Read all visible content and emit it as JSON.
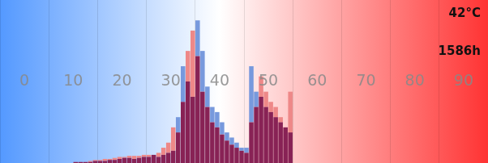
{
  "chart_data": {
    "type": "histogram",
    "bins": [
      0,
      1,
      2,
      3,
      4,
      5,
      6,
      7,
      8,
      9,
      10,
      11,
      12,
      13,
      14,
      15,
      16,
      17,
      18,
      19,
      20,
      21,
      22,
      23,
      24,
      25,
      26,
      27,
      28,
      29,
      30,
      31,
      32,
      33,
      34,
      35,
      36,
      37,
      38,
      39,
      40,
      41,
      42,
      43,
      44,
      45,
      46,
      47,
      48,
      49,
      50,
      51,
      52,
      53,
      54,
      55,
      56,
      57,
      58,
      59,
      60,
      61,
      62,
      63,
      64,
      65,
      66,
      67,
      68,
      69,
      70,
      71,
      72,
      73,
      74,
      75,
      76,
      77,
      78,
      79,
      80,
      81,
      82,
      83,
      84,
      85,
      86,
      87,
      88,
      89,
      90,
      91,
      92,
      93,
      94,
      95,
      96,
      97,
      98,
      99,
      100
    ],
    "series": [
      {
        "color": "#882255",
        "values": [
          0,
          0,
          0,
          0,
          0,
          0,
          0,
          0,
          0,
          0,
          0,
          0,
          0,
          0,
          0,
          0.1,
          0.1,
          0.1,
          0.1,
          0.2,
          0.2,
          0.2,
          0.3,
          0.3,
          0.4,
          0.5,
          0.5,
          0.4,
          0.5,
          0.6,
          0.6,
          0.8,
          0.6,
          0.8,
          1.0,
          1.2,
          3.0,
          6.0,
          8.0,
          6.5,
          10.5,
          7.0,
          5.5,
          4.0,
          3.5,
          2.8,
          2.2,
          1.8,
          1.5,
          1.2,
          1.0,
          4.0,
          5.5,
          6.5,
          5.5,
          5.0,
          4.5,
          4.0,
          3.5,
          3.0,
          0,
          0,
          0,
          0,
          0,
          0,
          0,
          0,
          0,
          0,
          0,
          0,
          0,
          0,
          0,
          0,
          0,
          0,
          0,
          0,
          0,
          0,
          0,
          0,
          0,
          0,
          0,
          0,
          0,
          0,
          0,
          0,
          0,
          0,
          0,
          0,
          0,
          0,
          0,
          0
        ]
      },
      {
        "color": "#7799dd",
        "values": [
          0,
          0,
          0,
          0,
          0,
          0,
          0,
          0,
          0,
          0,
          0,
          0,
          0,
          0,
          0,
          0,
          0,
          0,
          0,
          0,
          0,
          0,
          0,
          0,
          0,
          0,
          0,
          0,
          0,
          0,
          0,
          0,
          0,
          0,
          0,
          0,
          1.5,
          3.5,
          0,
          0,
          3.5,
          4.0,
          2.0,
          1.5,
          1.5,
          1.2,
          0.8,
          0.7,
          0.5,
          0.3,
          0.5,
          5.5,
          1.5,
          0,
          0,
          0,
          0,
          0,
          0,
          0,
          0,
          0,
          0,
          0,
          0,
          0,
          0,
          0,
          0,
          0,
          0,
          0,
          0,
          0,
          0,
          0,
          0,
          0,
          0,
          0,
          0,
          0,
          0,
          0,
          0,
          0,
          0,
          0,
          0,
          0,
          0,
          0,
          0,
          0,
          0,
          0,
          0,
          0,
          0,
          0
        ]
      },
      {
        "color": "#ee8888",
        "values": [
          0,
          0,
          0,
          0,
          0,
          0,
          0,
          0,
          0,
          0,
          0,
          0,
          0,
          0,
          0,
          0,
          0,
          0,
          0.1,
          0.1,
          0.1,
          0.2,
          0.1,
          0.2,
          0.2,
          0.1,
          0.2,
          0.3,
          0.2,
          0.2,
          0.2,
          0,
          0.4,
          0.7,
          1.0,
          2.3,
          0,
          0,
          3.0,
          6.5,
          0,
          0,
          0,
          0,
          0,
          0,
          0,
          0,
          0,
          0,
          0,
          0,
          0,
          2.0,
          1.5,
          1.0,
          1.0,
          0.5,
          0,
          4.0,
          0,
          0,
          0,
          0,
          0,
          0,
          0,
          0,
          0,
          0,
          0,
          0,
          0,
          0,
          0,
          0,
          0,
          0,
          0,
          0,
          0,
          0,
          0,
          0,
          0,
          0,
          0,
          0,
          0,
          0,
          0,
          0,
          0,
          0,
          0,
          0,
          0,
          0,
          0,
          0
        ]
      }
    ],
    "stacked": true,
    "xlim": [
      0,
      100
    ],
    "xticks": [
      0,
      10,
      20,
      30,
      40,
      50,
      60,
      70,
      80,
      90,
      100
    ],
    "ylim": [
      0,
      16
    ],
    "grid": "x",
    "tick_labels": false,
    "annotations": [
      {
        "text": "0",
        "x": 5,
        "y": 8
      },
      {
        "text": "10",
        "x": 15,
        "y": 8
      },
      {
        "text": "20",
        "x": 25,
        "y": 8
      },
      {
        "text": "30",
        "x": 35,
        "y": 8
      },
      {
        "text": "40",
        "x": 45,
        "y": 8
      },
      {
        "text": "50",
        "x": 55,
        "y": 8
      },
      {
        "text": "60",
        "x": 65,
        "y": 8
      },
      {
        "text": "70",
        "x": 75,
        "y": 8
      },
      {
        "text": "80",
        "x": 85,
        "y": 8
      },
      {
        "text": "90",
        "x": 95,
        "y": 8
      },
      {
        "text": "42°C"
      },
      {
        "text": "1586h"
      }
    ]
  }
}
